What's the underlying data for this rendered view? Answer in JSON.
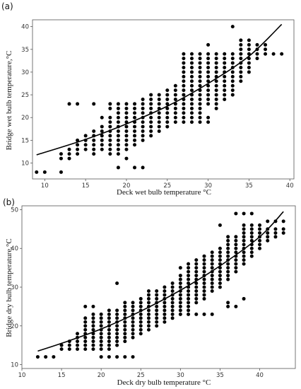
{
  "chart_data": [
    {
      "type": "scatter",
      "panel_label": "(a)",
      "xlabel": "Deck wet bulb temperature °C",
      "ylabel": "Bridge wet bulb temperature,°C",
      "xlim": [
        8.5,
        40.5
      ],
      "ylim": [
        6.5,
        41.5
      ],
      "xticks": [
        10,
        15,
        20,
        25,
        30,
        35,
        40
      ],
      "yticks": [
        10,
        15,
        20,
        25,
        30,
        35,
        40
      ],
      "grid": false,
      "point_columns": [
        {
          "x": 9,
          "y": [
            8
          ]
        },
        {
          "x": 10,
          "y": [
            8
          ]
        },
        {
          "x": 12,
          "y": [
            8,
            11,
            12
          ]
        },
        {
          "x": 13,
          "y": [
            11,
            12,
            13,
            23
          ]
        },
        {
          "x": 14,
          "y": [
            12,
            13,
            14,
            15,
            23
          ]
        },
        {
          "x": 15,
          "y": [
            13,
            14,
            15,
            16
          ]
        },
        {
          "x": 16,
          "y": [
            12,
            13,
            14,
            15,
            16,
            17,
            23
          ]
        },
        {
          "x": 17,
          "y": [
            13,
            14,
            15,
            16,
            17,
            18,
            20
          ]
        },
        {
          "x": 18,
          "y": [
            12,
            13,
            14,
            15,
            16,
            17,
            18,
            19,
            20,
            22,
            23
          ]
        },
        {
          "x": 19,
          "y": [
            9,
            12,
            13,
            14,
            15,
            16,
            17,
            18,
            19,
            20,
            21,
            22,
            23
          ]
        },
        {
          "x": 20,
          "y": [
            11,
            13,
            14,
            15,
            16,
            17,
            18,
            19,
            20,
            21,
            22,
            23
          ]
        },
        {
          "x": 21,
          "y": [
            9,
            14,
            15,
            16,
            17,
            18,
            19,
            20,
            21,
            22,
            23
          ]
        },
        {
          "x": 22,
          "y": [
            9,
            15,
            16,
            17,
            18,
            19,
            20,
            21,
            22,
            23,
            24
          ]
        },
        {
          "x": 23,
          "y": [
            16,
            17,
            18,
            19,
            20,
            21,
            22,
            23,
            24,
            25
          ]
        },
        {
          "x": 24,
          "y": [
            17,
            18,
            19,
            20,
            21,
            22,
            23,
            24,
            25
          ]
        },
        {
          "x": 25,
          "y": [
            18,
            19,
            20,
            21,
            22,
            23,
            24,
            25,
            26
          ]
        },
        {
          "x": 26,
          "y": [
            19,
            20,
            21,
            22,
            23,
            24,
            25,
            26,
            27
          ]
        },
        {
          "x": 27,
          "y": [
            19,
            20,
            21,
            22,
            23,
            24,
            25,
            26,
            27,
            28,
            29,
            30,
            31,
            32,
            33,
            34
          ]
        },
        {
          "x": 28,
          "y": [
            19,
            20,
            21,
            22,
            23,
            24,
            25,
            26,
            27,
            28,
            29,
            30,
            31,
            32,
            33,
            34
          ]
        },
        {
          "x": 29,
          "y": [
            19,
            20,
            21,
            22,
            23,
            24,
            25,
            26,
            27,
            28,
            29,
            30,
            31,
            32,
            33,
            34
          ]
        },
        {
          "x": 30,
          "y": [
            19,
            20,
            23,
            24,
            25,
            26,
            27,
            28,
            29,
            30,
            31,
            32,
            33,
            34,
            36
          ]
        },
        {
          "x": 31,
          "y": [
            22,
            23,
            24,
            25,
            26,
            27,
            28,
            29,
            30,
            31,
            32,
            33,
            34
          ]
        },
        {
          "x": 32,
          "y": [
            24,
            25,
            26,
            27,
            28,
            29,
            30,
            31,
            32,
            33,
            34
          ]
        },
        {
          "x": 33,
          "y": [
            25,
            26,
            27,
            28,
            29,
            30,
            31,
            32,
            33,
            34,
            40
          ]
        },
        {
          "x": 34,
          "y": [
            28,
            29,
            30,
            31,
            32,
            33,
            34,
            35,
            36,
            37
          ]
        },
        {
          "x": 35,
          "y": [
            30,
            31,
            32,
            33,
            34,
            35,
            36,
            37
          ]
        },
        {
          "x": 36,
          "y": [
            33,
            34,
            35,
            36
          ]
        },
        {
          "x": 37,
          "y": [
            34,
            35,
            36
          ]
        },
        {
          "x": 38,
          "y": [
            34
          ]
        },
        {
          "x": 39,
          "y": [
            34
          ]
        }
      ],
      "fit_line": {
        "x": [
          9,
          15,
          20,
          25,
          30,
          35,
          39
        ],
        "y": [
          11.8,
          15.2,
          18.6,
          22.5,
          27.5,
          33.5,
          40.5
        ]
      }
    },
    {
      "type": "scatter",
      "panel_label": "(b)",
      "xlabel": "Deck  dry bulb temperature °C",
      "ylabel": "Bridge dry bulb temperature,°C",
      "xlim": [
        10,
        44.5
      ],
      "ylim": [
        9,
        51
      ],
      "xticks": [
        10,
        15,
        20,
        25,
        30,
        35,
        40
      ],
      "yticks": [
        10,
        20,
        30,
        40,
        50
      ],
      "grid": false,
      "point_columns": [
        {
          "x": 12,
          "y": [
            12
          ]
        },
        {
          "x": 13,
          "y": [
            12
          ]
        },
        {
          "x": 14,
          "y": [
            12
          ]
        },
        {
          "x": 15,
          "y": [
            14,
            15
          ]
        },
        {
          "x": 16,
          "y": [
            14,
            15,
            16
          ]
        },
        {
          "x": 17,
          "y": [
            14,
            15,
            16,
            17,
            18
          ]
        },
        {
          "x": 18,
          "y": [
            14,
            15,
            16,
            17,
            18,
            19,
            20,
            21,
            22,
            25
          ]
        },
        {
          "x": 19,
          "y": [
            14,
            15,
            16,
            17,
            18,
            19,
            20,
            21,
            22,
            23,
            25
          ]
        },
        {
          "x": 20,
          "y": [
            12,
            14,
            15,
            16,
            17,
            18,
            19,
            20,
            21,
            22,
            23
          ]
        },
        {
          "x": 21,
          "y": [
            12,
            14,
            15,
            16,
            17,
            18,
            19,
            20,
            21,
            22,
            23,
            24
          ]
        },
        {
          "x": 22,
          "y": [
            12,
            15,
            16,
            17,
            18,
            19,
            20,
            21,
            22,
            23,
            24,
            31
          ]
        },
        {
          "x": 23,
          "y": [
            12,
            16,
            17,
            18,
            19,
            20,
            21,
            22,
            23,
            24,
            25,
            26
          ]
        },
        {
          "x": 24,
          "y": [
            12,
            17,
            18,
            19,
            20,
            21,
            22,
            23,
            24,
            25,
            26
          ]
        },
        {
          "x": 25,
          "y": [
            18,
            19,
            20,
            21,
            22,
            23,
            24,
            25,
            26,
            27
          ]
        },
        {
          "x": 26,
          "y": [
            19,
            20,
            21,
            22,
            23,
            24,
            25,
            26,
            27,
            28,
            29
          ]
        },
        {
          "x": 27,
          "y": [
            20,
            21,
            22,
            23,
            24,
            25,
            26,
            27,
            28,
            29
          ]
        },
        {
          "x": 28,
          "y": [
            21,
            22,
            23,
            24,
            25,
            26,
            27,
            28,
            29,
            30
          ]
        },
        {
          "x": 29,
          "y": [
            22,
            23,
            24,
            25,
            26,
            27,
            28,
            29,
            30,
            31
          ]
        },
        {
          "x": 30,
          "y": [
            23,
            24,
            25,
            26,
            27,
            28,
            29,
            30,
            31,
            32,
            33,
            35
          ]
        },
        {
          "x": 31,
          "y": [
            23,
            24,
            25,
            26,
            27,
            28,
            29,
            30,
            31,
            32,
            33,
            34,
            35,
            36
          ]
        },
        {
          "x": 32,
          "y": [
            23,
            26,
            27,
            28,
            29,
            30,
            31,
            32,
            33,
            34,
            35,
            36,
            37
          ]
        },
        {
          "x": 33,
          "y": [
            23,
            27,
            28,
            29,
            30,
            31,
            32,
            33,
            34,
            35,
            36,
            37,
            38
          ]
        },
        {
          "x": 34,
          "y": [
            23,
            29,
            30,
            31,
            32,
            33,
            34,
            35,
            36,
            37,
            38,
            39
          ]
        },
        {
          "x": 35,
          "y": [
            30,
            31,
            32,
            33,
            34,
            35,
            36,
            37,
            38,
            39,
            40,
            46
          ]
        },
        {
          "x": 36,
          "y": [
            25,
            26,
            32,
            33,
            34,
            35,
            36,
            37,
            38,
            39,
            40,
            41,
            42,
            43
          ]
        },
        {
          "x": 37,
          "y": [
            25,
            34,
            35,
            36,
            37,
            38,
            39,
            40,
            41,
            42,
            43,
            49
          ]
        },
        {
          "x": 38,
          "y": [
            27,
            36,
            37,
            38,
            39,
            40,
            41,
            42,
            43,
            44,
            45,
            46,
            49
          ]
        },
        {
          "x": 39,
          "y": [
            38,
            39,
            40,
            41,
            42,
            43,
            44,
            45,
            46,
            49
          ]
        },
        {
          "x": 40,
          "y": [
            40,
            41,
            42,
            43,
            44,
            45,
            46
          ]
        },
        {
          "x": 41,
          "y": [
            42,
            43,
            44,
            45,
            47
          ]
        },
        {
          "x": 42,
          "y": [
            43,
            44,
            45,
            47
          ]
        },
        {
          "x": 43,
          "y": [
            44,
            45,
            47
          ]
        }
      ],
      "fit_line": {
        "x": [
          12,
          15,
          20,
          25,
          30,
          35,
          40,
          43
        ],
        "y": [
          13.5,
          15.5,
          19.2,
          23.8,
          29.2,
          35.5,
          43.0,
          49.5
        ]
      }
    }
  ]
}
